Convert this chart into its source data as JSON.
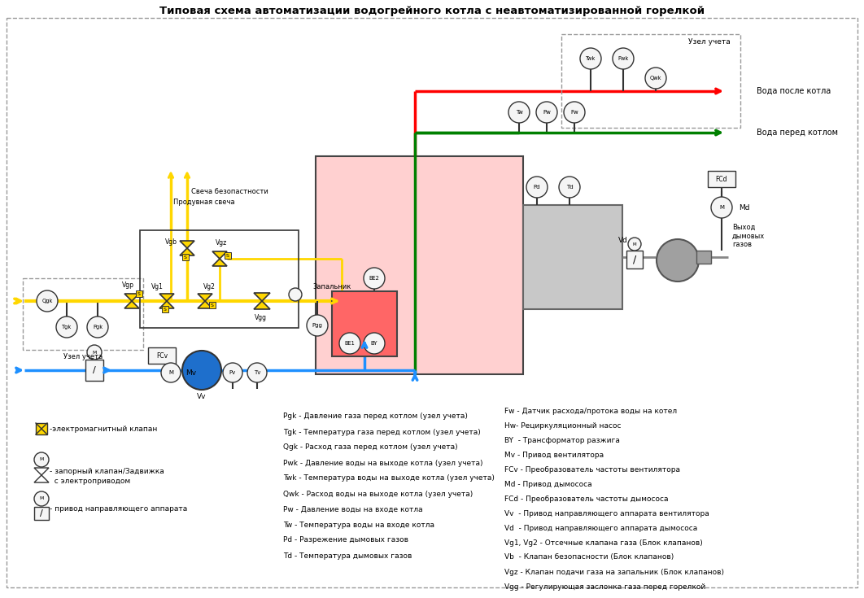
{
  "title": "Типовая схема автоматизации водогрейного котла с неавтоматизированной горелкой",
  "bg_color": "#ffffff",
  "gas_line_color": "#FFD700",
  "water_supply_color": "#1E90FF",
  "water_return_color": "#008000",
  "water_after_color": "#FF0000",
  "boiler_fill": "#FFD0D0",
  "burner_fill": "#FF7070",
  "flue_box_fill": "#C0C0C0",
  "sensor_fill": "#f5f5f5",
  "valve_fill": "#FFD700",
  "legend_mid": [
    "Pgk - Давление газа перед котлом (узел учета)",
    "Tgk - Температура газа перед котлом (узел учета)",
    "Qgk - Расход газа перед котлом (узел учета)",
    "Pwk - Давление воды на выходе котла (узел учета)",
    "Twk - Температура воды на выходе котла (узел учета)",
    "Qwk - Расход воды на выходе котла (узел учета)",
    "Pw - Давление воды на входе котла",
    "Tw - Температура воды на входе котла",
    "Pd - Разрежение дымовых газов",
    "Td - Температура дымовых газов"
  ],
  "legend_right": [
    "Fw - Датчик расхода/протока воды на котел",
    "Hw- Рециркуляционный насос",
    "BY  - Трансформатор разжига",
    "Mv - Привод вентилятора",
    "FCv - Преобразователь частоты вентилятора",
    "Md - Привод дымососа",
    "FCd - Преобразователь частоты дымососа",
    "Vv  - Привод направляющего аппарата вентилятора",
    "Vd  - Привод направляющего аппарата дымососа",
    "Vg1, Vg2 - Отсечные клапана газа (Блок клапанов)",
    "Vb  - Клапан безопасности (Блок клапанов)",
    "Vgz - Клапан подачи газа на запальник (Блок клапанов)",
    "Vgg - Регулирующая заслонка газа перед горелкой"
  ]
}
